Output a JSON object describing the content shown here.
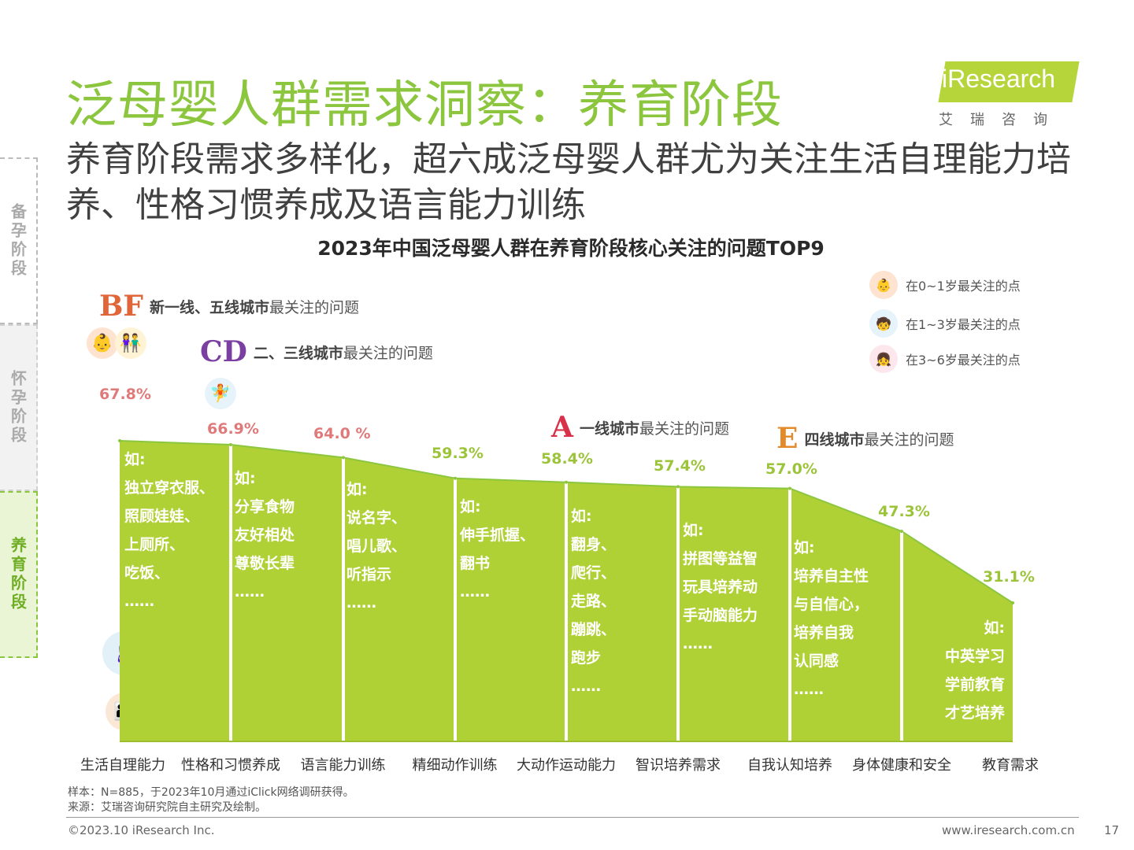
{
  "header": {
    "title": "泛母婴人群需求洞察：养育阶段",
    "subtitle": "养育阶段需求多样化，超六成泛母婴人群尤为关注生活自理能力培养、性格习惯养成及语言能力训练"
  },
  "logo": {
    "word": "iResearch",
    "cn": "艾瑞咨询"
  },
  "side_tabs": [
    {
      "label": "备孕阶段"
    },
    {
      "label": "怀孕阶段"
    },
    {
      "label": "养育阶段"
    }
  ],
  "legend": [
    {
      "label": "在0~1岁最关注的点",
      "icon": "baby-icon"
    },
    {
      "label": "在1~3岁最关注的点",
      "icon": "toddler-icon"
    },
    {
      "label": "在3~6岁最关注的点",
      "icon": "children-icon"
    }
  ],
  "city_tags": [
    {
      "letters": "BF",
      "bold": "新一线、五线城市",
      "rest": "最关注的问题"
    },
    {
      "letters": "CD",
      "bold": "二、三线城市",
      "rest": "最关注的问题"
    },
    {
      "letters": "A",
      "bold": "一线城市",
      "rest": "最关注的问题"
    },
    {
      "letters": "E",
      "bold": "四线城市",
      "rest": "最关注的问题"
    }
  ],
  "chart_data": {
    "type": "area",
    "title": "2023年中国泛母婴人群在养育阶段核心关注的问题TOP9",
    "categories": [
      "生活自理能力",
      "性格和习惯养成",
      "语言能力训练",
      "精细动作训练",
      "大动作运动能力",
      "智识培养需求",
      "自我认知培养",
      "身体健康和安全",
      "教育需求"
    ],
    "value_labels": [
      "67.8%",
      "66.9%",
      "64.0 %",
      "59.3%",
      "58.4%",
      "57.4%",
      "57.0%",
      "47.3%",
      "31.1%"
    ],
    "series": [
      {
        "values": [
          67.8,
          66.9,
          64.0,
          59.3,
          58.4,
          57.4,
          57.0,
          47.3,
          31.1
        ]
      }
    ],
    "examples": [
      [
        "如:",
        "独立穿衣服、",
        "照顾娃娃、",
        "上厕所、",
        "吃饭、",
        "……"
      ],
      [
        "如:",
        "分享食物",
        "友好相处",
        "尊敬长辈",
        "……"
      ],
      [
        "如:",
        "说名字、",
        "唱儿歌、",
        "听指示",
        "……"
      ],
      [
        "如:",
        "伸手抓握、",
        "翻书",
        "……"
      ],
      [
        "如:",
        "翻身、",
        "爬行、",
        "走路、",
        "蹦跳、",
        "跑步",
        "……"
      ],
      [
        "如:",
        "拼图等益智",
        "玩具培养动",
        "手动脑能力",
        "……"
      ],
      [
        "如:",
        "培养自主性",
        "与自信心，",
        "培养自我",
        "认同感",
        "……"
      ],
      [],
      [
        "如:",
        "中英学习",
        "学前教育",
        "才艺培养"
      ]
    ],
    "colors": {
      "fill": "#b0d136",
      "line": "#8cc63f",
      "separator": "#ffffff"
    },
    "grid": false
  },
  "notes": {
    "sample": "样本：N=885，于2023年10月通过iClick网络调研获得。",
    "source": "来源：艾瑞咨询研究院自主研究及绘制。"
  },
  "footer": {
    "copyright": "©2023.10 iResearch Inc.",
    "url": "www.iresearch.com.cn",
    "page": "17"
  }
}
